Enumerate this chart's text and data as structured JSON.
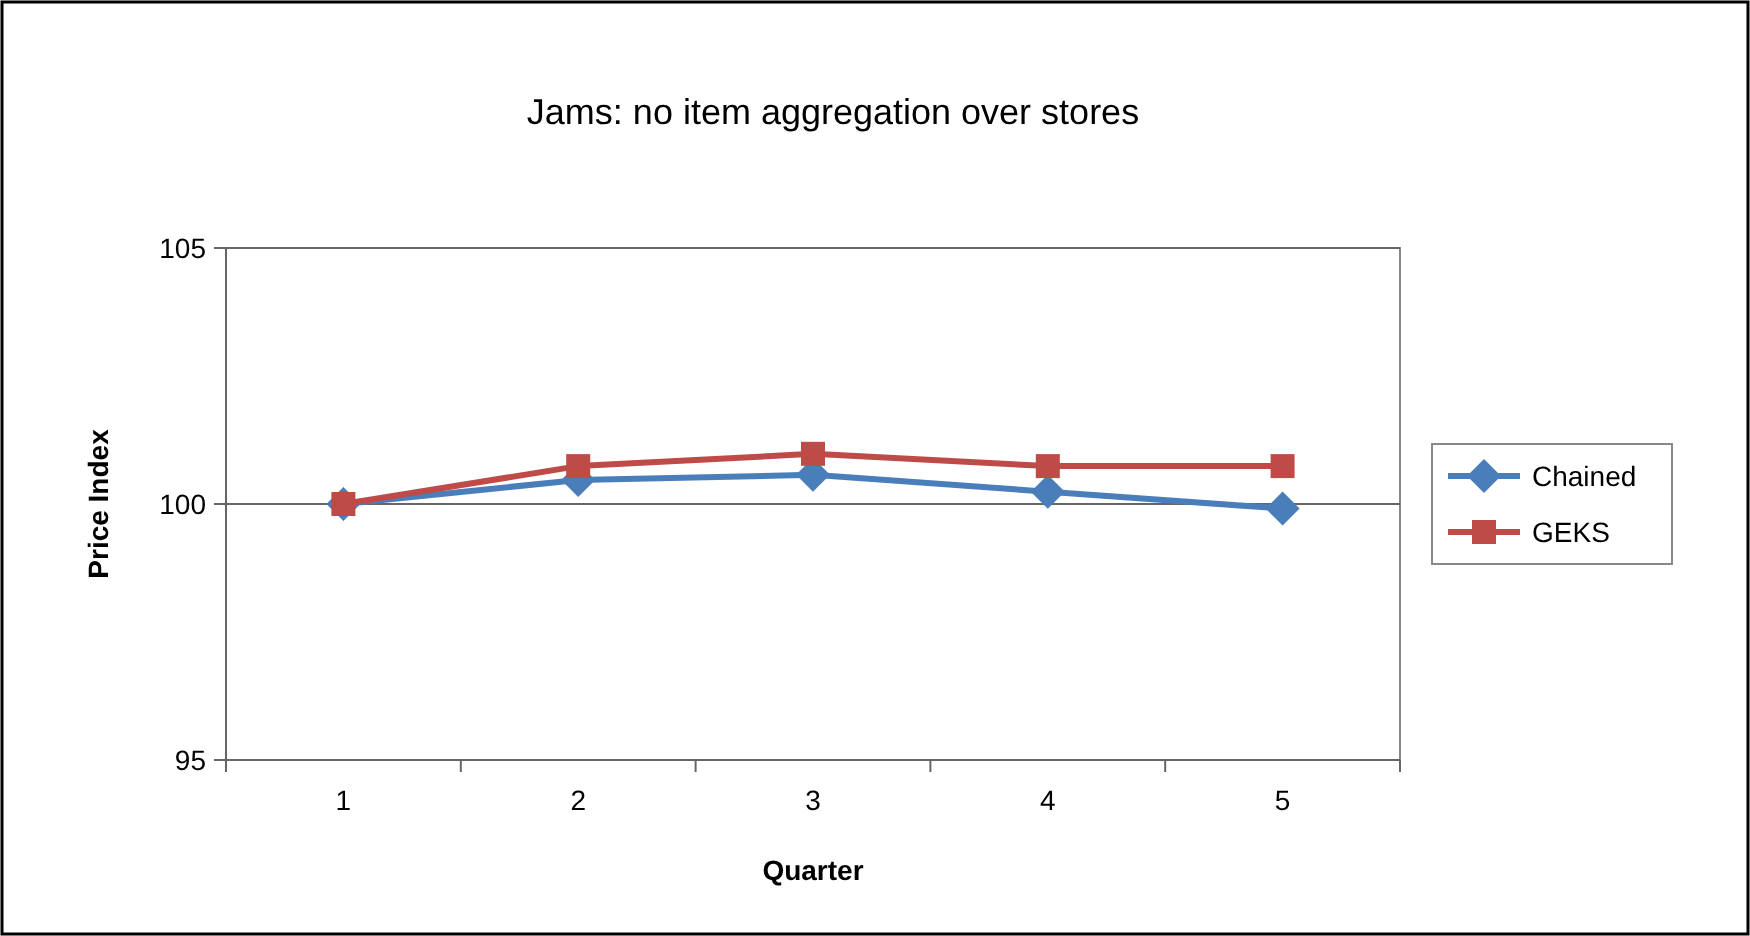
{
  "chart_data": {
    "type": "line",
    "title": "Jams: no item aggregation over stores",
    "xlabel": "Quarter",
    "ylabel": "Price Index",
    "categories": [
      "1",
      "2",
      "3",
      "4",
      "5"
    ],
    "ylim": [
      95,
      105
    ],
    "yticks": [
      95,
      100,
      105
    ],
    "grid": "y",
    "legend": "right",
    "series": [
      {
        "name": "Chained",
        "color": "#4a7ebb",
        "marker": "diamond",
        "values": [
          100,
          100.47,
          100.57,
          100.24,
          99.91
        ]
      },
      {
        "name": "GEKS",
        "color": "#be4b48",
        "marker": "square",
        "values": [
          100,
          100.74,
          100.98,
          100.74,
          100.74
        ]
      }
    ]
  }
}
